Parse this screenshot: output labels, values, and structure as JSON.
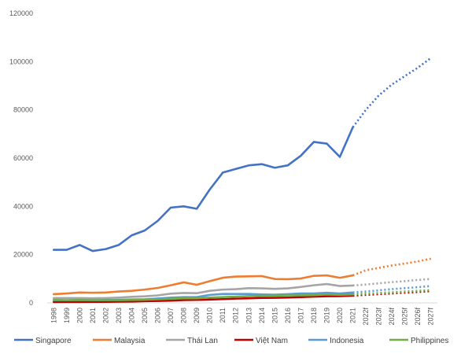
{
  "chart_data": {
    "type": "line",
    "title": "",
    "xlabel": "",
    "ylabel": "",
    "ylim": [
      0,
      120000
    ],
    "yticks": [
      0,
      20000,
      40000,
      60000,
      80000,
      100000,
      120000
    ],
    "grid": false,
    "legend_position": "bottom",
    "categories": [
      "1998",
      "1999",
      "2000",
      "2001",
      "2002",
      "2003",
      "2004",
      "2005",
      "2006",
      "2007",
      "2008",
      "2009",
      "2010",
      "2011",
      "2012",
      "2013",
      "2014",
      "2015",
      "2016",
      "2017",
      "2018",
      "2019",
      "2020",
      "2021",
      "2022f",
      "2023f",
      "2024f",
      "2025f",
      "2026f",
      "2027f"
    ],
    "actual_last_index": 23,
    "series": [
      {
        "name": "Singapore",
        "color": "#4472C4",
        "values": [
          22000,
          22000,
          24000,
          21500,
          22300,
          24000,
          28000,
          30000,
          34000,
          39500,
          40000,
          39000,
          47000,
          54000,
          55500,
          57000,
          57500,
          56000,
          57000,
          61000,
          66700,
          66000,
          60500,
          72800,
          80000,
          86000,
          90500,
          94000,
          97500,
          101500
        ]
      },
      {
        "name": "Malaysia",
        "color": "#ED7D31",
        "values": [
          3600,
          3900,
          4300,
          4200,
          4300,
          4700,
          5000,
          5500,
          6200,
          7300,
          8500,
          7500,
          9000,
          10400,
          10900,
          11000,
          11100,
          9900,
          9800,
          10100,
          11200,
          11400,
          10400,
          11400,
          13500,
          14500,
          15500,
          16300,
          17200,
          18300
        ]
      },
      {
        "name": "Thái Lan",
        "color": "#A5A5A5",
        "values": [
          2000,
          2000,
          2000,
          1900,
          2000,
          2200,
          2500,
          2700,
          3100,
          3800,
          4100,
          4000,
          5000,
          5500,
          5700,
          6100,
          6000,
          5800,
          6000,
          6600,
          7300,
          7800,
          7000,
          7200,
          7600,
          8100,
          8600,
          9000,
          9500,
          9900
        ]
      },
      {
        "name": "Việt Nam",
        "color": "#C00000",
        "values": [
          360,
          370,
          390,
          410,
          440,
          490,
          550,
          700,
          800,
          920,
          1150,
          1220,
          1360,
          1550,
          1750,
          1900,
          2050,
          2100,
          2200,
          2400,
          2600,
          2750,
          2800,
          3000,
          3300,
          3600,
          3900,
          4200,
          4500,
          4900
        ]
      },
      {
        "name": "Indonesia",
        "color": "#5B9BD5",
        "values": [
          1100,
          1100,
          1200,
          1100,
          1200,
          1300,
          1400,
          1500,
          1800,
          2200,
          2400,
          2400,
          3300,
          3700,
          3700,
          3700,
          3500,
          3400,
          3600,
          3900,
          3900,
          4200,
          3900,
          4300,
          4700,
          5200,
          5700,
          6100,
          6500,
          7000
        ]
      },
      {
        "name": "Philippines",
        "color": "#70AD47",
        "values": [
          1200,
          1100,
          1200,
          1100,
          1100,
          1100,
          1200,
          1300,
          1500,
          1700,
          1900,
          1900,
          2200,
          2400,
          2600,
          2800,
          2900,
          3000,
          3100,
          3100,
          3200,
          3500,
          3300,
          3500,
          3800,
          4100,
          4400,
          4700,
          5000,
          5300
        ]
      }
    ]
  }
}
